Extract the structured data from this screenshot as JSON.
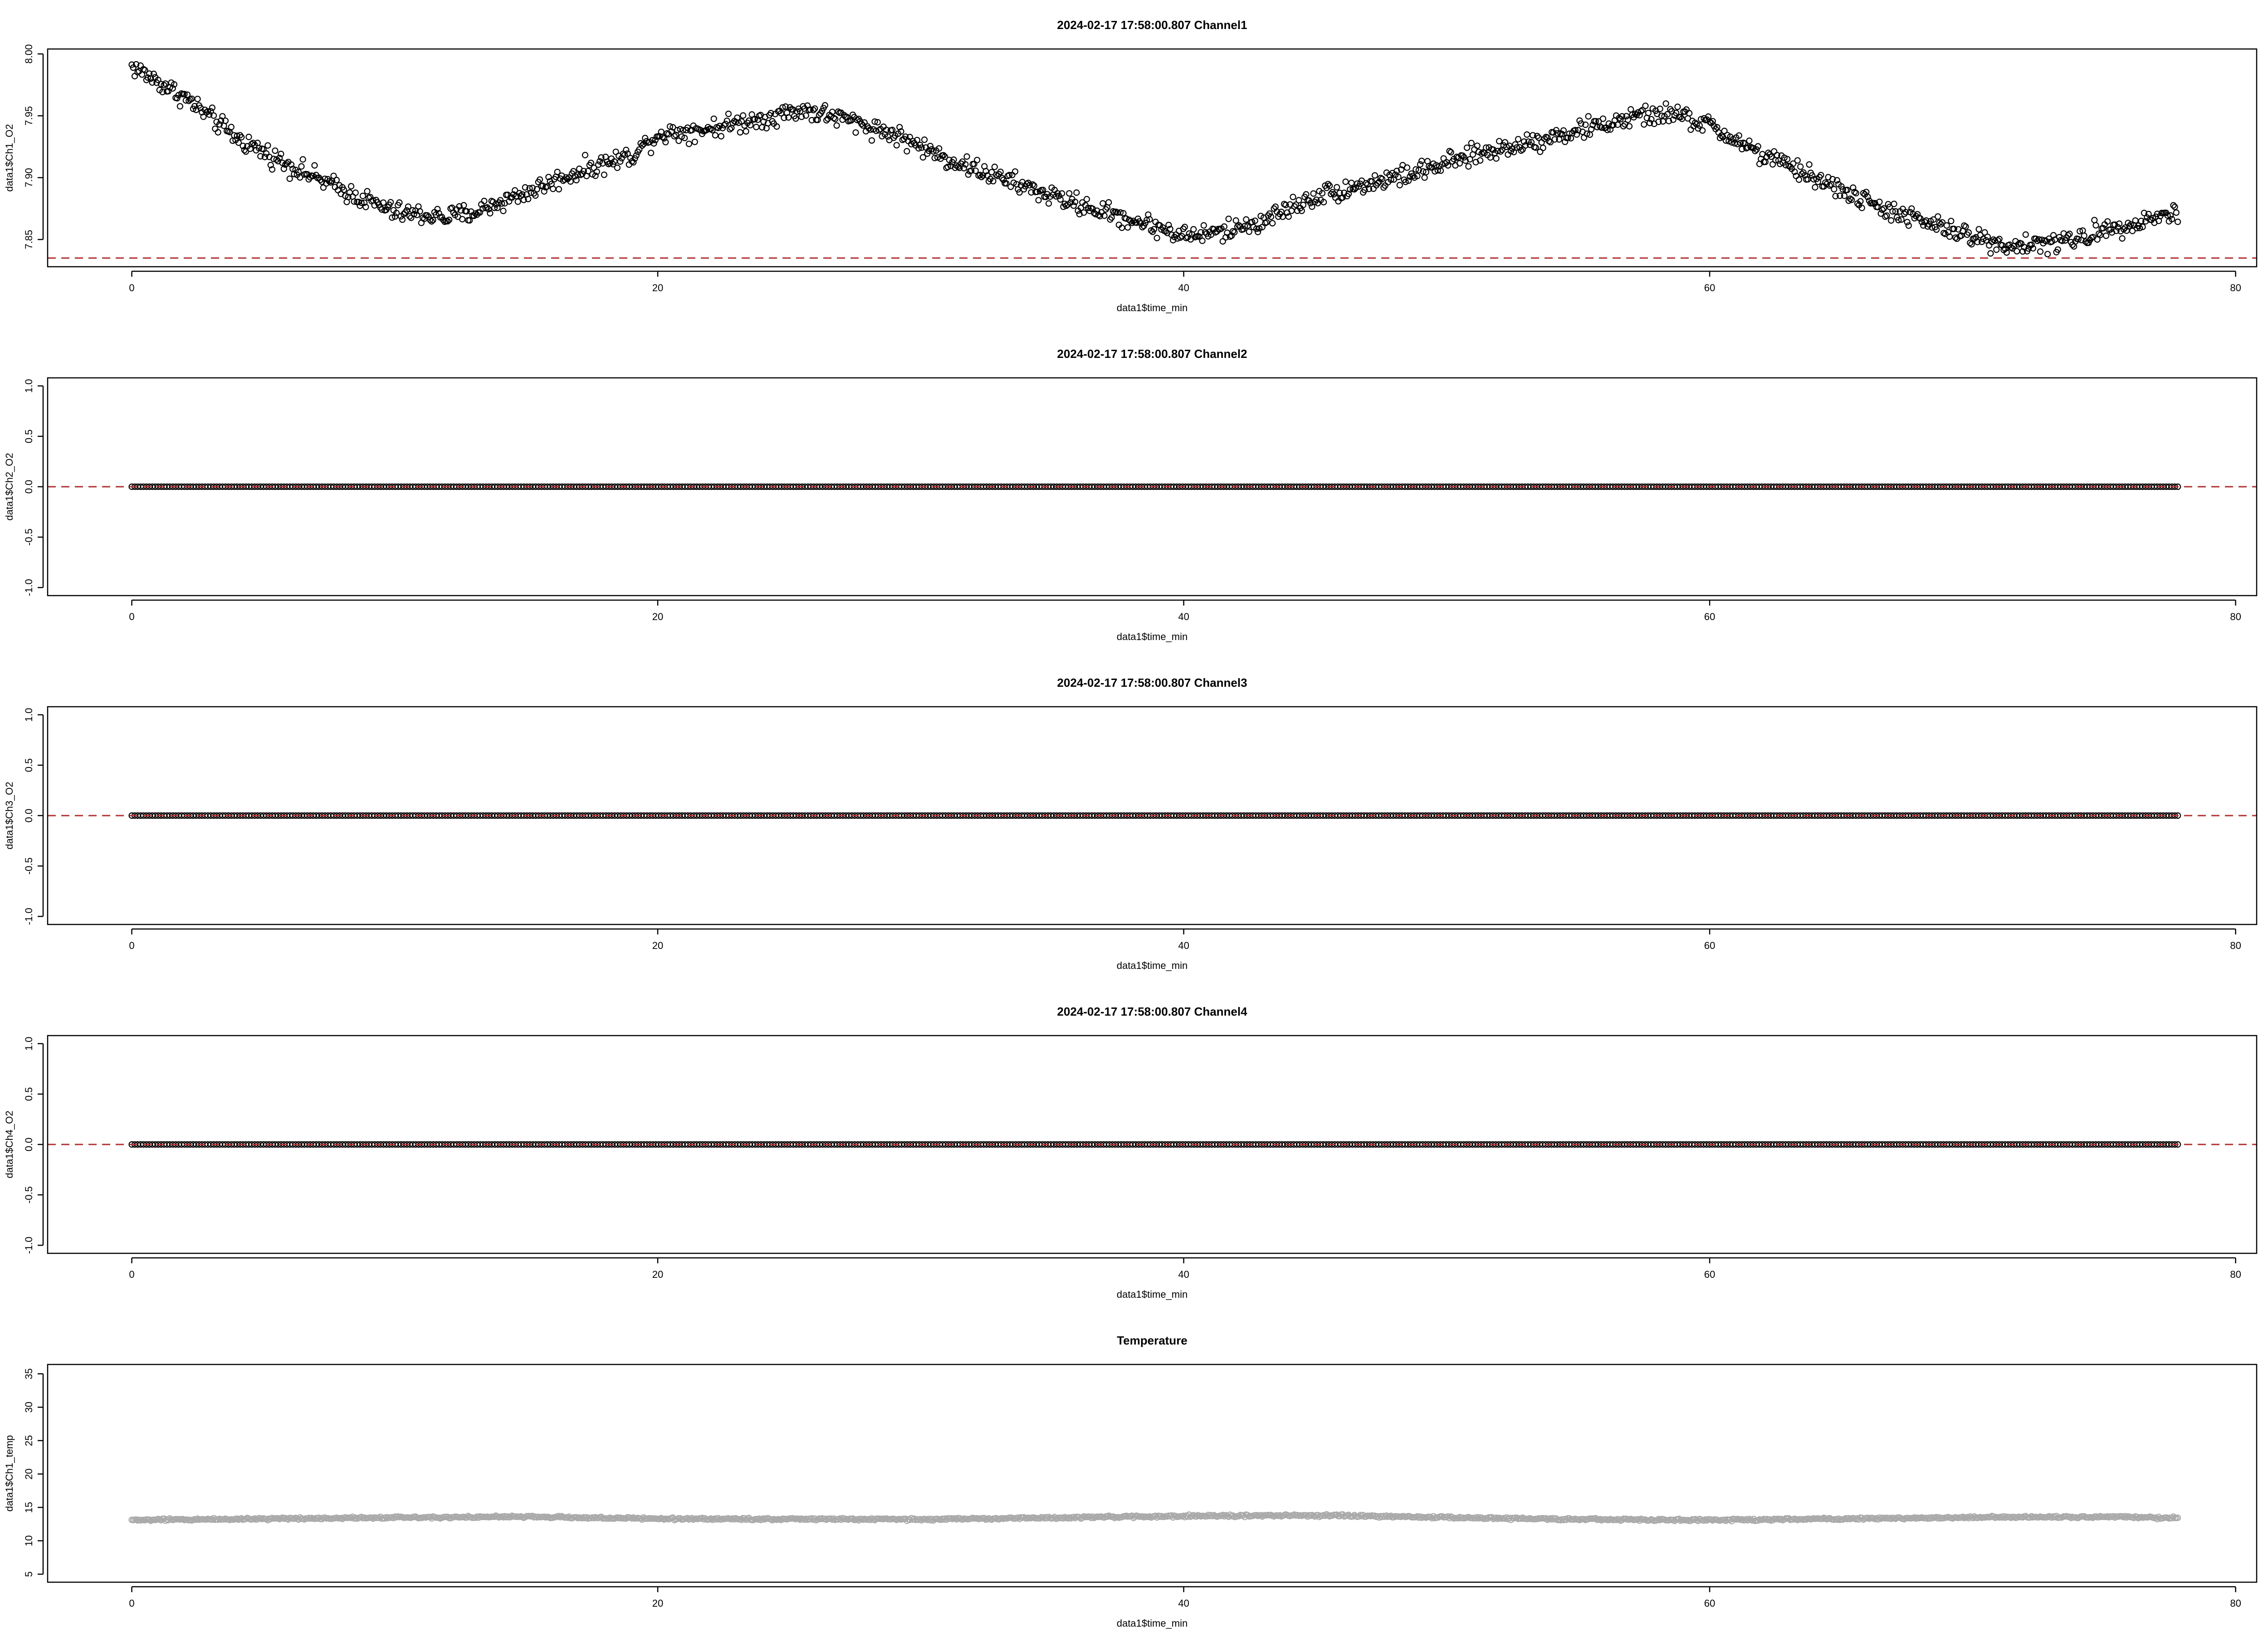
{
  "chart_data": [
    {
      "type": "scatter",
      "title": "2024-02-17 17:58:00.807 Channel1",
      "xlabel": "data1$time_min",
      "ylabel": "data1$Ch1_O2",
      "xlim": [
        -3.2,
        80.8
      ],
      "ylim": [
        7.828,
        8.004
      ],
      "xticks": [
        0,
        20,
        40,
        60,
        80
      ],
      "yticks": [
        7.85,
        7.9,
        7.95,
        8.0
      ],
      "ytick_labels": [
        "7.85",
        "7.90",
        "7.95",
        "8.00"
      ],
      "point_style": "open-circle",
      "point_color": "#000000",
      "x_range": [
        0,
        77.8
      ],
      "noise": 0.004,
      "reference_line": {
        "y": 7.835,
        "color": "#b03030",
        "style": "dashed"
      },
      "trend": {
        "x": [
          0,
          2,
          4,
          6,
          8,
          10,
          12,
          13,
          15,
          17,
          19,
          20,
          22,
          24,
          25.5,
          27,
          29,
          31,
          33,
          35,
          37,
          39,
          40,
          41.5,
          43,
          45,
          47,
          49,
          51,
          53,
          55,
          57,
          58.5,
          60,
          62,
          64,
          66,
          68,
          70,
          71.5,
          73,
          74,
          75,
          77.8
        ],
        "y": [
          7.99,
          7.965,
          7.932,
          7.91,
          7.89,
          7.872,
          7.868,
          7.872,
          7.888,
          7.905,
          7.918,
          7.935,
          7.94,
          7.948,
          7.955,
          7.948,
          7.935,
          7.915,
          7.9,
          7.885,
          7.872,
          7.86,
          7.853,
          7.856,
          7.865,
          7.885,
          7.895,
          7.905,
          7.918,
          7.928,
          7.938,
          7.948,
          7.952,
          7.942,
          7.918,
          7.9,
          7.88,
          7.865,
          7.852,
          7.845,
          7.847,
          7.85,
          7.858,
          7.872
        ]
      }
    },
    {
      "type": "scatter",
      "title": "2024-02-17 17:58:00.807 Channel2",
      "xlabel": "data1$time_min",
      "ylabel": "data1$Ch2_O2",
      "xlim": [
        -3.2,
        80.8
      ],
      "ylim": [
        -1.08,
        1.08
      ],
      "xticks": [
        0,
        20,
        40,
        60,
        80
      ],
      "yticks": [
        -1.0,
        -0.5,
        0.0,
        0.5,
        1.0
      ],
      "ytick_labels": [
        "-1.0",
        "-0.5",
        "0.0",
        "0.5",
        "1.0"
      ],
      "point_style": "open-circle",
      "point_color": "#000000",
      "x_range": [
        0,
        77.8
      ],
      "noise": 0,
      "reference_line": {
        "y": 0.0,
        "color": "#b03030",
        "style": "dashed"
      },
      "trend": {
        "x": [
          0,
          77.8
        ],
        "y": [
          0,
          0
        ]
      }
    },
    {
      "type": "scatter",
      "title": "2024-02-17 17:58:00.807 Channel3",
      "xlabel": "data1$time_min",
      "ylabel": "data1$Ch3_O2",
      "xlim": [
        -3.2,
        80.8
      ],
      "ylim": [
        -1.08,
        1.08
      ],
      "xticks": [
        0,
        20,
        40,
        60,
        80
      ],
      "yticks": [
        -1.0,
        -0.5,
        0.0,
        0.5,
        1.0
      ],
      "ytick_labels": [
        "-1.0",
        "-0.5",
        "0.0",
        "0.5",
        "1.0"
      ],
      "point_style": "open-circle",
      "point_color": "#000000",
      "x_range": [
        0,
        77.8
      ],
      "noise": 0,
      "reference_line": {
        "y": 0.0,
        "color": "#b03030",
        "style": "dashed"
      },
      "trend": {
        "x": [
          0,
          77.8
        ],
        "y": [
          0,
          0
        ]
      }
    },
    {
      "type": "scatter",
      "title": "2024-02-17 17:58:00.807 Channel4",
      "xlabel": "data1$time_min",
      "ylabel": "data1$Ch4_O2",
      "xlim": [
        -3.2,
        80.8
      ],
      "ylim": [
        -1.08,
        1.08
      ],
      "xticks": [
        0,
        20,
        40,
        60,
        80
      ],
      "yticks": [
        -1.0,
        -0.5,
        0.0,
        0.5,
        1.0
      ],
      "ytick_labels": [
        "-1.0",
        "-0.5",
        "0.0",
        "0.5",
        "1.0"
      ],
      "point_style": "open-circle",
      "point_color": "#000000",
      "x_range": [
        0,
        77.8
      ],
      "noise": 0,
      "reference_line": {
        "y": 0.0,
        "color": "#b03030",
        "style": "dashed"
      },
      "trend": {
        "x": [
          0,
          77.8
        ],
        "y": [
          0,
          0
        ]
      }
    },
    {
      "type": "scatter",
      "title": "Temperature",
      "xlabel": "data1$time_min",
      "ylabel": "data1$Ch1_temp",
      "xlim": [
        -3.2,
        80.8
      ],
      "ylim": [
        3.8,
        36.4
      ],
      "xticks": [
        0,
        20,
        40,
        60,
        80
      ],
      "yticks": [
        5,
        10,
        15,
        20,
        25,
        30,
        35
      ],
      "ytick_labels": [
        "5",
        "10",
        "15",
        "20",
        "25",
        "30",
        "35"
      ],
      "point_style": "open-circle",
      "point_color": "#aaaaaa",
      "x_range": [
        0,
        77.8
      ],
      "noise": 0.08,
      "reference_line": null,
      "trend": {
        "x": [
          0,
          10,
          15,
          20,
          30,
          40,
          45,
          55,
          60,
          70,
          75,
          77.8
        ],
        "y": [
          13.1,
          13.5,
          13.6,
          13.3,
          13.2,
          13.7,
          13.8,
          13.2,
          13.1,
          13.5,
          13.6,
          13.4
        ]
      }
    }
  ]
}
